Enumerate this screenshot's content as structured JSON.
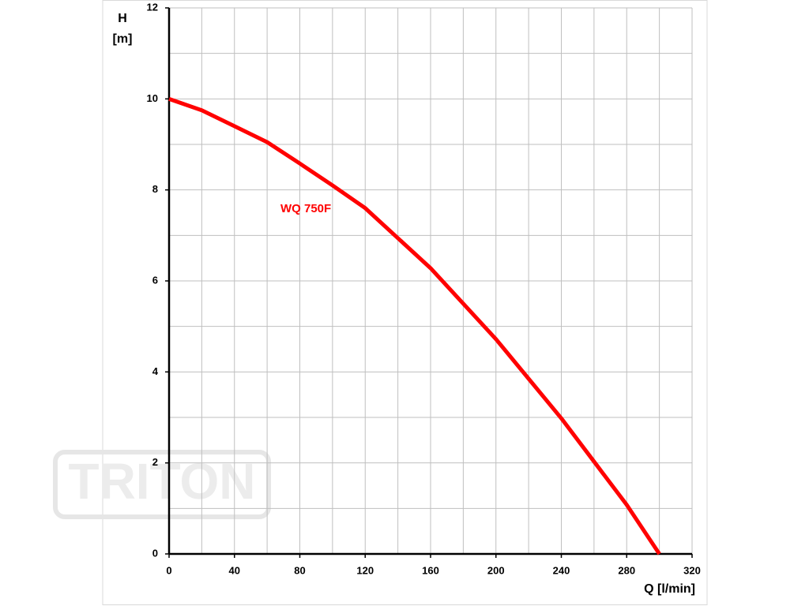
{
  "chart_data": {
    "type": "line",
    "ylabel": [
      "H",
      "[m]"
    ],
    "xlabel": "Q [l/min]",
    "watermark": "TRITON",
    "x": [
      0,
      20,
      40,
      60,
      80,
      100,
      120,
      140,
      160,
      180,
      200,
      220,
      240,
      260,
      280,
      300
    ],
    "series": [
      {
        "name": "WQ 750F",
        "color": "#ff0000",
        "values": [
          10,
          9.75,
          9.4,
          9.05,
          8.58,
          8.1,
          7.6,
          6.94,
          6.28,
          5.5,
          4.72,
          3.85,
          2.98,
          2.03,
          1.08,
          0
        ]
      }
    ],
    "xlim": [
      0,
      320
    ],
    "xticks": [
      0,
      40,
      80,
      120,
      160,
      200,
      240,
      280,
      320
    ],
    "xminorticks": [
      20,
      60,
      100,
      140,
      180,
      220,
      260,
      300
    ],
    "ylim": [
      0,
      12
    ],
    "yticks": [
      0,
      2,
      4,
      6,
      8,
      10,
      12
    ],
    "yminorticks": [
      1,
      3,
      5,
      7,
      9,
      11
    ],
    "grid": true
  }
}
